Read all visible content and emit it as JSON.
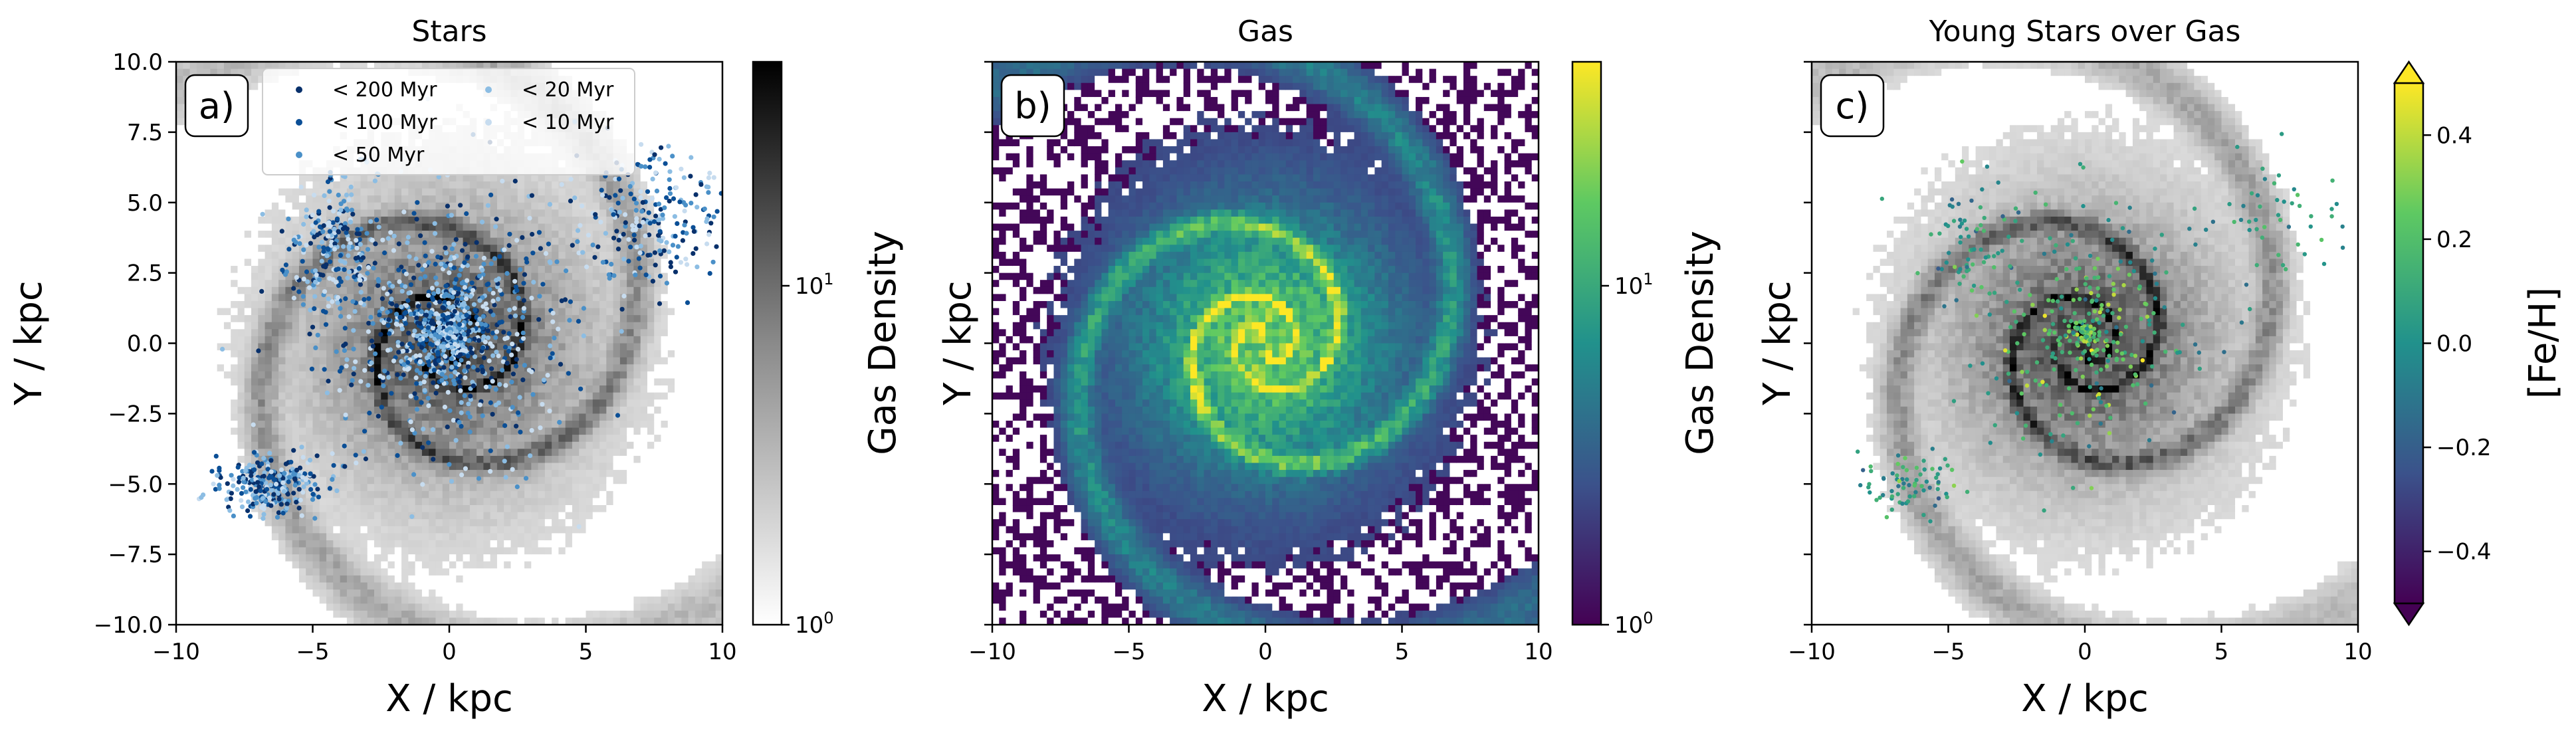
{
  "chart_data": [
    {
      "type": "heatmap",
      "title": "Stars",
      "panel_label": "a)",
      "xlabel": "X / kpc",
      "ylabel": "Y / kpc",
      "xlim": [
        -10,
        10
      ],
      "ylim": [
        -10,
        10
      ],
      "x_ticks": [
        "−10",
        "−5",
        "0",
        "5",
        "10"
      ],
      "y_ticks": [
        "−10.0",
        "−7.5",
        "−5.0",
        "−2.5",
        "0.0",
        "2.5",
        "5.0",
        "7.5",
        "10.0"
      ],
      "background": "gas density histogram (greyscale)",
      "overlay": "scatter of young star particles coloured by age",
      "legend_placement": "top-center",
      "legend": [
        {
          "label": "< 200 Myr",
          "color": "#08306b"
        },
        {
          "label": "< 100 Myr",
          "color": "#0b4f96"
        },
        {
          "label": "< 50 Myr",
          "color": "#4a90c8"
        },
        {
          "label": "< 20 Myr",
          "color": "#8cbde3"
        },
        {
          "label": "< 10 Myr",
          "color": "#c7dcef"
        }
      ],
      "colorbar": {
        "label": "Gas Density",
        "scale": "log",
        "range": [
          1,
          60
        ],
        "ticks": [
          [
            "10",
            "0"
          ],
          [
            "10",
            "1"
          ]
        ],
        "colormap": "Greys"
      }
    },
    {
      "type": "heatmap",
      "title": "Gas",
      "panel_label": "b)",
      "xlabel": "X / kpc",
      "ylabel": "Y / kpc",
      "xlim": [
        -10,
        10
      ],
      "ylim": [
        -10,
        10
      ],
      "x_ticks": [
        "−10",
        "−5",
        "0",
        "5",
        "10"
      ],
      "background": "gas density histogram (viridis)",
      "colorbar": {
        "label": "Gas Density",
        "scale": "log",
        "range": [
          1,
          60
        ],
        "ticks": [
          [
            "10",
            "0"
          ],
          [
            "10",
            "1"
          ]
        ],
        "colormap": "viridis"
      }
    },
    {
      "type": "heatmap",
      "title": "Young Stars over Gas",
      "panel_label": "c)",
      "xlabel": "X / kpc",
      "ylabel": "Y / kpc",
      "xlim": [
        -10,
        10
      ],
      "ylim": [
        -10,
        10
      ],
      "x_ticks": [
        "−10",
        "−5",
        "0",
        "5",
        "10"
      ],
      "background": "gas density histogram (greyscale)",
      "overlay": "scatter of young star particles coloured by [Fe/H]",
      "colorbar": {
        "label": "[Fe/H]",
        "scale": "linear",
        "range": [
          -0.5,
          0.5
        ],
        "ticks": [
          "0.4",
          "0.2",
          "0.0",
          "−0.2",
          "−0.4"
        ],
        "colormap": "viridis",
        "extend": "both"
      }
    }
  ]
}
